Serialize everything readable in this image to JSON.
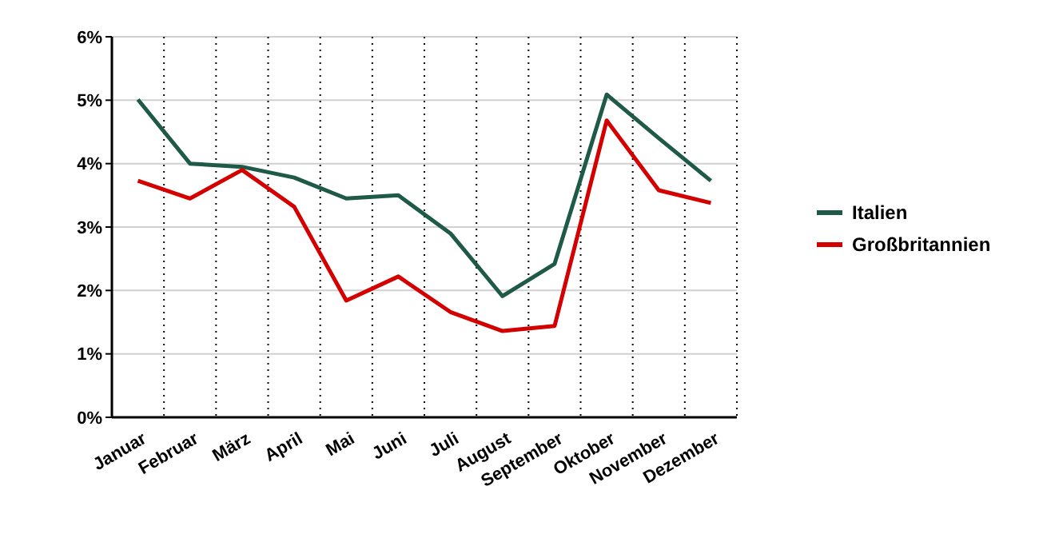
{
  "chart_data": {
    "type": "line",
    "categories": [
      "Januar",
      "Februar",
      "März",
      "April",
      "Mai",
      "Juni",
      "Juli",
      "August",
      "September",
      "Oktober",
      "November",
      "Dezember"
    ],
    "series": [
      {
        "name": "Italien",
        "color": "#1f5a48",
        "values": [
          5.01,
          4.0,
          3.95,
          3.78,
          3.45,
          3.5,
          2.9,
          1.91,
          2.42,
          5.09,
          4.4,
          3.73
        ]
      },
      {
        "name": "Großbritannien",
        "color": "#d40000",
        "values": [
          3.73,
          3.45,
          3.9,
          3.32,
          1.84,
          2.22,
          1.66,
          1.36,
          1.44,
          4.68,
          3.58,
          3.38
        ]
      }
    ],
    "ylim": [
      0,
      6
    ],
    "yticks": [
      {
        "value": 0,
        "label": "0%"
      },
      {
        "value": 1,
        "label": "1%"
      },
      {
        "value": 2,
        "label": "2%"
      },
      {
        "value": 3,
        "label": "3%"
      },
      {
        "value": 4,
        "label": "4%"
      },
      {
        "value": 5,
        "label": "5%"
      },
      {
        "value": 6,
        "label": "6%"
      }
    ],
    "grid": true,
    "legend": "right",
    "marker": "none",
    "line_style": "solid"
  }
}
